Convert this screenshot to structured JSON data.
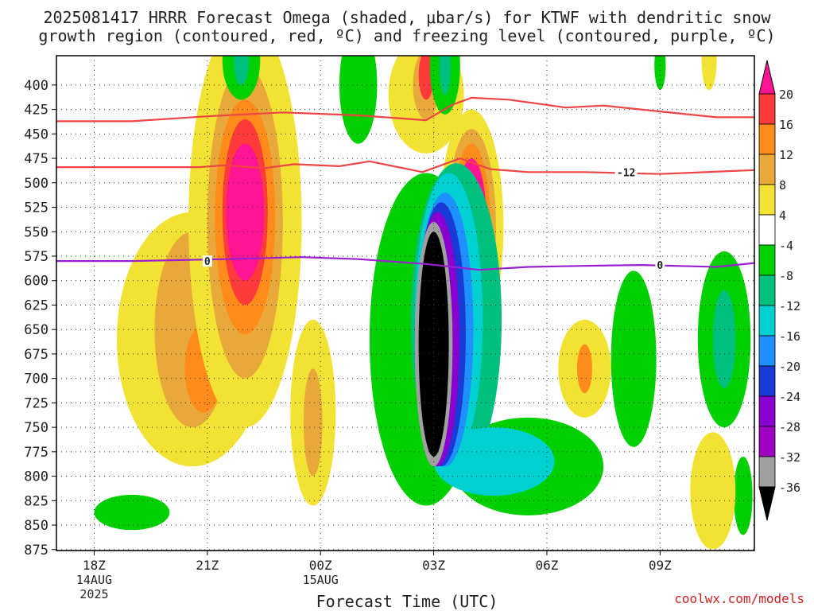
{
  "header": {
    "title_line1": "2025081417 HRRR Forecast Omega (shaded, μbar/s) for KTWF with dendritic snow",
    "title_line2": "growth region (contoured, red, ºC) and freezing level (contoured, purple, ºC)"
  },
  "footer": {
    "credit": "coolwx.com/models",
    "xlabel": "Forecast Time (UTC)"
  },
  "chart_data": {
    "type": "heatmap",
    "title": "2025081417 HRRR Forecast Omega (shaded, μbar/s) for KTWF with dendritic snow growth region (contoured, red, ºC) and freezing level (contoured, purple, ºC)",
    "xlabel": "Forecast Time (UTC)",
    "ylabel": "",
    "x_ticks": [
      {
        "label": "18Z",
        "sub1": "14AUG",
        "sub2": "2025",
        "hour": 0
      },
      {
        "label": "21Z",
        "sub1": "",
        "sub2": "",
        "hour": 3
      },
      {
        "label": "00Z",
        "sub1": "15AUG",
        "sub2": "",
        "hour": 6
      },
      {
        "label": "03Z",
        "sub1": "",
        "sub2": "",
        "hour": 9
      },
      {
        "label": "06Z",
        "sub1": "",
        "sub2": "",
        "hour": 12
      },
      {
        "label": "09Z",
        "sub1": "",
        "sub2": "",
        "hour": 15
      }
    ],
    "xlim_hours": [
      -1,
      17.5
    ],
    "y_ticks": [
      400,
      425,
      450,
      475,
      500,
      525,
      550,
      575,
      600,
      625,
      650,
      675,
      700,
      725,
      750,
      775,
      800,
      825,
      850,
      875
    ],
    "ylim": [
      370,
      876
    ],
    "colorbar": {
      "labels": [
        "20",
        "16",
        "12",
        "8",
        "4",
        "-4",
        "-8",
        "-12",
        "-16",
        "-20",
        "-24",
        "-28",
        "-32",
        "-36"
      ],
      "colors": [
        "#ff1493",
        "#ff3a3a",
        "#ff8c1a",
        "#e8a93a",
        "#f2e233",
        "#ffffff",
        "#00d000",
        "#00c080",
        "#00d0d0",
        "#1e90ff",
        "#1a3ad8",
        "#8a00d0",
        "#a000c0",
        "#a0a0a0",
        "#000000"
      ]
    },
    "blobs": [
      {
        "color": "#f2e233",
        "x": 2.6,
        "p": 660,
        "rx": 2.0,
        "rp": 130
      },
      {
        "color": "#e8a93a",
        "x": 2.6,
        "p": 650,
        "rx": 1.0,
        "rp": 100
      },
      {
        "color": "#ff8c1a",
        "x": 2.9,
        "p": 690,
        "rx": 0.5,
        "rp": 45
      },
      {
        "color": "#f2e233",
        "x": 4.0,
        "p": 540,
        "rx": 1.5,
        "rp": 210
      },
      {
        "color": "#e8a93a",
        "x": 4.0,
        "p": 540,
        "rx": 1.0,
        "rp": 160
      },
      {
        "color": "#ff8c1a",
        "x": 4.0,
        "p": 535,
        "rx": 0.8,
        "rp": 120
      },
      {
        "color": "#ff3a3a",
        "x": 4.0,
        "p": 530,
        "rx": 0.6,
        "rp": 95
      },
      {
        "color": "#ff1493",
        "x": 4.0,
        "p": 530,
        "rx": 0.5,
        "rp": 70
      },
      {
        "color": "#f2e233",
        "x": 5.8,
        "p": 735,
        "rx": 0.6,
        "rp": 95
      },
      {
        "color": "#e8a93a",
        "x": 5.8,
        "p": 745,
        "rx": 0.25,
        "rp": 55
      },
      {
        "color": "#f2e233",
        "x": 8.8,
        "p": 410,
        "rx": 1.0,
        "rp": 60
      },
      {
        "color": "#e8a93a",
        "x": 8.8,
        "p": 400,
        "rx": 0.35,
        "rp": 35
      },
      {
        "color": "#ff3a3a",
        "x": 8.8,
        "p": 390,
        "rx": 0.2,
        "rp": 25
      },
      {
        "color": "#f2e233",
        "x": 10.0,
        "p": 545,
        "rx": 0.85,
        "rp": 120
      },
      {
        "color": "#e8a93a",
        "x": 10.0,
        "p": 545,
        "rx": 0.65,
        "rp": 100
      },
      {
        "color": "#ff8c1a",
        "x": 10.0,
        "p": 545,
        "rx": 0.5,
        "rp": 85
      },
      {
        "color": "#ff1493",
        "x": 10.0,
        "p": 540,
        "rx": 0.4,
        "rp": 65
      },
      {
        "color": "#f2e233",
        "x": 13.0,
        "p": 690,
        "rx": 0.7,
        "rp": 50
      },
      {
        "color": "#ff8c1a",
        "x": 13.0,
        "p": 690,
        "rx": 0.2,
        "rp": 25
      },
      {
        "color": "#00d000",
        "x": 8.8,
        "p": 660,
        "rx": 1.5,
        "rp": 170
      },
      {
        "color": "#00d000",
        "x": 11.5,
        "p": 790,
        "rx": 2.0,
        "rp": 50
      },
      {
        "color": "#00c080",
        "x": 9.6,
        "p": 640,
        "rx": 1.2,
        "rp": 160
      },
      {
        "color": "#00d0d0",
        "x": 10.6,
        "p": 785,
        "rx": 1.6,
        "rp": 35
      },
      {
        "color": "#00d0d0",
        "x": 9.4,
        "p": 640,
        "rx": 0.9,
        "rp": 150
      },
      {
        "color": "#1e90ff",
        "x": 9.3,
        "p": 650,
        "rx": 0.75,
        "rp": 140
      },
      {
        "color": "#1a3ad8",
        "x": 9.2,
        "p": 655,
        "rx": 0.65,
        "rp": 135
      },
      {
        "color": "#8a00d0",
        "x": 9.1,
        "p": 660,
        "rx": 0.58,
        "rp": 130
      },
      {
        "color": "#a0a0a0",
        "x": 9.0,
        "p": 665,
        "rx": 0.5,
        "rp": 125
      },
      {
        "color": "#000000",
        "x": 9.0,
        "p": 665,
        "rx": 0.4,
        "rp": 115
      },
      {
        "color": "#00d000",
        "x": 1.0,
        "p": 837,
        "rx": 1.0,
        "rp": 18
      },
      {
        "color": "#00d000",
        "x": 14.3,
        "p": 680,
        "rx": 0.6,
        "rp": 90
      },
      {
        "color": "#00d000",
        "x": 16.7,
        "p": 660,
        "rx": 0.7,
        "rp": 90
      },
      {
        "color": "#00c080",
        "x": 16.7,
        "p": 660,
        "rx": 0.3,
        "rp": 50
      },
      {
        "color": "#00d000",
        "x": 17.2,
        "p": 820,
        "rx": 0.25,
        "rp": 40
      },
      {
        "color": "#f2e233",
        "x": 16.4,
        "p": 815,
        "rx": 0.6,
        "rp": 60
      },
      {
        "color": "#00d000",
        "x": 7.0,
        "p": 400,
        "rx": 0.5,
        "rp": 60
      },
      {
        "color": "#00d000",
        "x": 9.3,
        "p": 380,
        "rx": 0.4,
        "rp": 50
      },
      {
        "color": "#00c080",
        "x": 9.3,
        "p": 380,
        "rx": 0.15,
        "rp": 30
      },
      {
        "color": "#00d000",
        "x": 3.9,
        "p": 375,
        "rx": 0.5,
        "rp": 40
      },
      {
        "color": "#00c080",
        "x": 3.9,
        "p": 375,
        "rx": 0.2,
        "rp": 25
      },
      {
        "color": "#f2e233",
        "x": 16.3,
        "p": 375,
        "rx": 0.2,
        "rp": 30
      },
      {
        "color": "#00d000",
        "x": 15.0,
        "p": 380,
        "rx": 0.15,
        "rp": 25
      }
    ],
    "contours": [
      {
        "name": "-12 red top",
        "color": "#ee4444",
        "label": "",
        "points": [
          [
            -1,
            437
          ],
          [
            1,
            437
          ],
          [
            3,
            432
          ],
          [
            5,
            428
          ],
          [
            7,
            431
          ],
          [
            8.8,
            436
          ],
          [
            9.5,
            420
          ],
          [
            10,
            413
          ],
          [
            11,
            415
          ],
          [
            12.5,
            423
          ],
          [
            13.5,
            421
          ],
          [
            15,
            427
          ],
          [
            16.5,
            433
          ],
          [
            17.5,
            433
          ]
        ]
      },
      {
        "name": "-12 red lower",
        "color": "#ee4444",
        "label": "-12",
        "labelAt": [
          14.1,
          489
        ],
        "points": [
          [
            -1,
            484
          ],
          [
            1,
            484
          ],
          [
            2.8,
            484
          ],
          [
            3.5,
            482
          ],
          [
            4.5,
            485
          ],
          [
            5.3,
            481
          ],
          [
            6.5,
            483
          ],
          [
            7.3,
            478
          ],
          [
            8.7,
            489
          ],
          [
            9.7,
            475
          ],
          [
            10.5,
            486
          ],
          [
            11.5,
            489
          ],
          [
            13,
            489
          ],
          [
            15,
            491
          ],
          [
            17.5,
            487
          ]
        ]
      },
      {
        "name": "0 purple",
        "color": "#9a1fd0",
        "label": "0",
        "labelAt": [
          3.0,
          580
        ],
        "label2At": [
          15.0,
          584
        ],
        "points": [
          [
            -1,
            580
          ],
          [
            1,
            580
          ],
          [
            3.5,
            578
          ],
          [
            5.5,
            576
          ],
          [
            7,
            578
          ],
          [
            8.8,
            583
          ],
          [
            10.2,
            589
          ],
          [
            11.5,
            586
          ],
          [
            12.8,
            585
          ],
          [
            14.5,
            584
          ],
          [
            16.5,
            586
          ],
          [
            17.5,
            582
          ]
        ]
      }
    ]
  }
}
